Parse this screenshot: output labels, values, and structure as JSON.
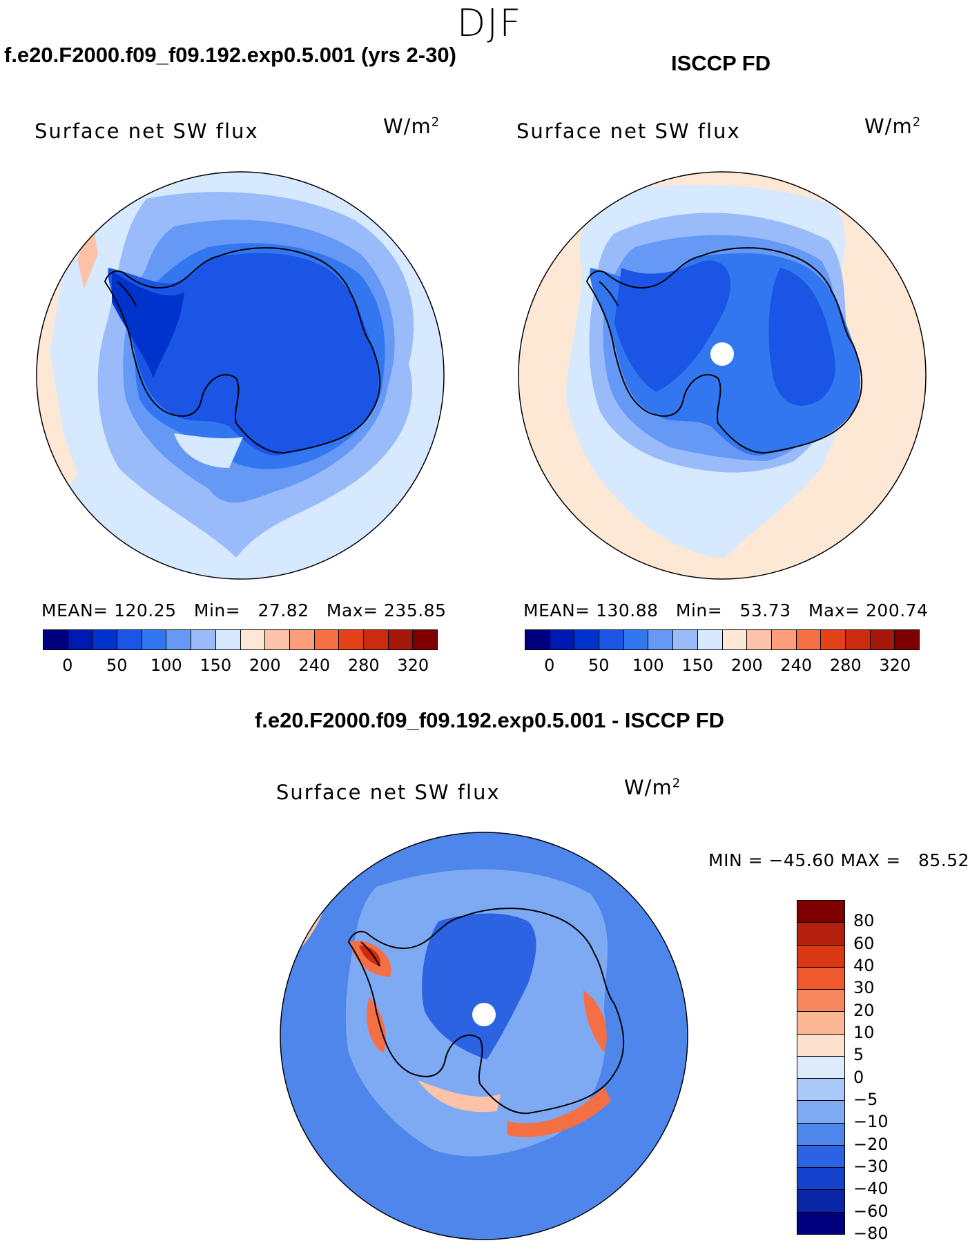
{
  "season": "DJF",
  "panels": [
    {
      "id": "model",
      "header": "f.e20.F2000.f09_f09.192.exp0.5.001 (yrs 2-30)",
      "variable": "Surface net SW flux",
      "units_base": "W/m",
      "units_exp": "2",
      "stats": "MEAN= 120.25   Min=   27.82   Max= 235.85"
    },
    {
      "id": "obs",
      "header": "ISCCP FD",
      "variable": "Surface net SW flux",
      "units_base": "W/m",
      "units_exp": "2",
      "stats": "MEAN= 130.88   Min=   53.73   Max= 200.74"
    },
    {
      "id": "diff",
      "header": "f.e20.F2000.f09_f09.192.exp0.5.001 - ISCCP FD",
      "variable": "Surface net SW flux",
      "units_base": "W/m",
      "units_exp": "2",
      "stats": "MIN = −45.60 MAX =   85.52"
    }
  ],
  "field_colorbar": {
    "colors": [
      "#00007f",
      "#0019b3",
      "#0033cc",
      "#1a55e6",
      "#3377f0",
      "#6699f5",
      "#99bbfa",
      "#d6e9ff",
      "#fde8d6",
      "#fcc3a8",
      "#fa9f7a",
      "#f56f45",
      "#e6421a",
      "#cc2b0f",
      "#a6180a",
      "#7f0000"
    ],
    "ticks": [
      "0",
      "50",
      "100",
      "150",
      "200",
      "240",
      "280",
      "320"
    ]
  },
  "diff_colorbar": {
    "colors": [
      "#7f0000",
      "#b3200d",
      "#d93812",
      "#ee5a2e",
      "#f7875e",
      "#fbb693",
      "#fde3cf",
      "#dcecfc",
      "#aac8f9",
      "#7ea9f3",
      "#4f86ec",
      "#2b63e3",
      "#1542cb",
      "#0a25a6",
      "#00007f"
    ],
    "ticks": [
      "80",
      "60",
      "40",
      "30",
      "20",
      "10",
      "5",
      "0",
      "−5",
      "−10",
      "−20",
      "−30",
      "−40",
      "−60",
      "−80"
    ]
  },
  "map_colors": {
    "ocean_light": "#d6e9ff",
    "ocean_mid": "#99bbfa",
    "ocean_dark": "#6699f5",
    "shelf": "#3377f0",
    "ice_model": "#1a55e6",
    "ice_dark": "#0033cc",
    "warm_light": "#fde8d6",
    "warm_mid": "#fcc3a8",
    "warm_strong": "#f56f45",
    "warm_hot": "#cc2b0f",
    "diff_base": "#7ea9f3",
    "diff_cool": "#4f86ec",
    "diff_cooler": "#2b63e3",
    "diff_faint": "#aac8f9",
    "coast": "#000000",
    "missing": "#ffffff"
  }
}
